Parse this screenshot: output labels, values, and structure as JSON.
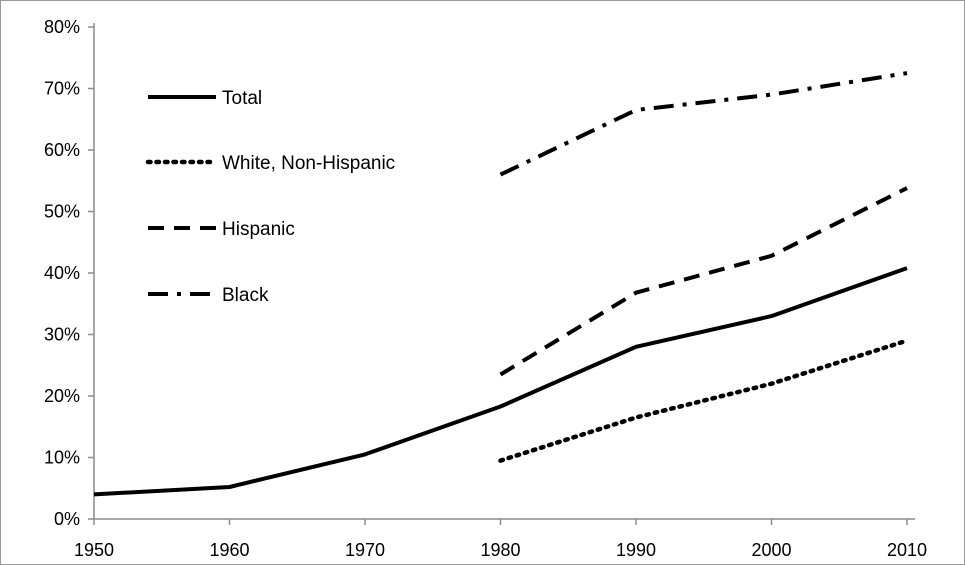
{
  "chart_data": {
    "type": "line",
    "title": "",
    "xlabel": "",
    "ylabel": "",
    "x": [
      1950,
      1960,
      1970,
      1980,
      1990,
      2000,
      2010
    ],
    "ylim": [
      0,
      80
    ],
    "yticks": [
      "0%",
      "10%",
      "20%",
      "30%",
      "40%",
      "50%",
      "60%",
      "70%",
      "80%"
    ],
    "xticks": [
      "1950",
      "1960",
      "1970",
      "1980",
      "1990",
      "2000",
      "2010"
    ],
    "grid": false,
    "legend_position": "top-left, inside",
    "series": [
      {
        "name": "Total",
        "style": "solid",
        "values": [
          4,
          5.2,
          10.5,
          18.3,
          28,
          33,
          40.8
        ]
      },
      {
        "name": "White, Non-Hispanic",
        "style": "dotted",
        "values": [
          null,
          null,
          null,
          9.5,
          16.5,
          22,
          29
        ]
      },
      {
        "name": "Hispanic",
        "style": "dashed",
        "values": [
          null,
          null,
          null,
          23.5,
          36.8,
          42.8,
          53.8
        ]
      },
      {
        "name": "Black",
        "style": "dash-dot",
        "values": [
          null,
          null,
          null,
          56,
          66.5,
          69,
          72.5
        ]
      }
    ],
    "line_color": "#000000"
  }
}
